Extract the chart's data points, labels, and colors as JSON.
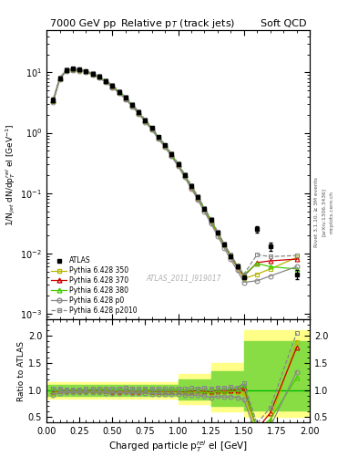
{
  "title_left": "7000 GeV pp",
  "title_right": "Soft QCD",
  "main_title": "Relative p$_{T}$ (track jets)",
  "xlabel": "Charged particle p$_{T}^{rel}$ el [GeV]",
  "ylabel_main": "1/N$_{jet}$ dN/dp$_{T}^{rel}$ el [GeV$^{-1}$]",
  "ylabel_ratio": "Ratio to ATLAS",
  "watermark": "ATLAS_2011_I919017",
  "rivet_text": "Rivet 3.1.10, ≥ 3M events",
  "arxiv_text": "[arXiv:1306.3436]",
  "mcplots_text": "mcplots.cern.ch",
  "atlas_x": [
    0.05,
    0.1,
    0.15,
    0.2,
    0.25,
    0.3,
    0.35,
    0.4,
    0.45,
    0.5,
    0.55,
    0.6,
    0.65,
    0.7,
    0.75,
    0.8,
    0.85,
    0.9,
    0.95,
    1.0,
    1.05,
    1.1,
    1.15,
    1.2,
    1.25,
    1.3,
    1.35,
    1.4,
    1.45,
    1.5,
    1.6,
    1.7,
    1.9
  ],
  "atlas_y": [
    3.5,
    8.0,
    11.0,
    11.5,
    11.2,
    10.5,
    9.5,
    8.5,
    7.2,
    6.0,
    4.8,
    3.8,
    2.9,
    2.2,
    1.6,
    1.2,
    0.85,
    0.62,
    0.44,
    0.3,
    0.2,
    0.13,
    0.085,
    0.055,
    0.036,
    0.022,
    0.014,
    0.009,
    0.006,
    0.004,
    0.025,
    0.013,
    0.0045
  ],
  "atlas_yerr": [
    0.3,
    0.4,
    0.5,
    0.5,
    0.5,
    0.4,
    0.4,
    0.35,
    0.3,
    0.25,
    0.2,
    0.16,
    0.12,
    0.09,
    0.07,
    0.05,
    0.035,
    0.025,
    0.018,
    0.012,
    0.008,
    0.005,
    0.003,
    0.002,
    0.0015,
    0.001,
    0.0006,
    0.0004,
    0.0003,
    0.0002,
    0.003,
    0.002,
    0.0008
  ],
  "py350_x": [
    0.05,
    0.1,
    0.15,
    0.2,
    0.25,
    0.3,
    0.35,
    0.4,
    0.45,
    0.5,
    0.55,
    0.6,
    0.65,
    0.7,
    0.75,
    0.8,
    0.85,
    0.9,
    0.95,
    1.0,
    1.05,
    1.1,
    1.15,
    1.2,
    1.25,
    1.3,
    1.35,
    1.4,
    1.45,
    1.5,
    1.6,
    1.7,
    1.9
  ],
  "py350_y": [
    3.3,
    7.8,
    10.8,
    11.3,
    11.0,
    10.3,
    9.3,
    8.3,
    7.0,
    5.8,
    4.6,
    3.7,
    2.8,
    2.1,
    1.55,
    1.15,
    0.82,
    0.6,
    0.42,
    0.29,
    0.19,
    0.125,
    0.082,
    0.053,
    0.034,
    0.021,
    0.0135,
    0.0088,
    0.0058,
    0.0038,
    0.0045,
    0.0055,
    0.0085
  ],
  "py370_x": [
    0.05,
    0.1,
    0.15,
    0.2,
    0.25,
    0.3,
    0.35,
    0.4,
    0.45,
    0.5,
    0.55,
    0.6,
    0.65,
    0.7,
    0.75,
    0.8,
    0.85,
    0.9,
    0.95,
    1.0,
    1.05,
    1.1,
    1.15,
    1.2,
    1.25,
    1.3,
    1.35,
    1.4,
    1.45,
    1.5,
    1.6,
    1.7,
    1.9
  ],
  "py370_y": [
    3.4,
    7.9,
    10.9,
    11.4,
    11.1,
    10.4,
    9.4,
    8.4,
    7.1,
    5.9,
    4.7,
    3.75,
    2.85,
    2.15,
    1.58,
    1.18,
    0.83,
    0.61,
    0.43,
    0.295,
    0.195,
    0.128,
    0.084,
    0.054,
    0.035,
    0.022,
    0.0138,
    0.009,
    0.006,
    0.0042,
    0.007,
    0.0075,
    0.008
  ],
  "py380_x": [
    0.05,
    0.1,
    0.15,
    0.2,
    0.25,
    0.3,
    0.35,
    0.4,
    0.45,
    0.5,
    0.55,
    0.6,
    0.65,
    0.7,
    0.75,
    0.8,
    0.85,
    0.9,
    0.95,
    1.0,
    1.05,
    1.1,
    1.15,
    1.2,
    1.25,
    1.3,
    1.35,
    1.4,
    1.45,
    1.5,
    1.6,
    1.7,
    1.9
  ],
  "py380_y": [
    3.45,
    7.95,
    10.95,
    11.45,
    11.15,
    10.45,
    9.45,
    8.45,
    7.15,
    5.95,
    4.75,
    3.78,
    2.88,
    2.17,
    1.59,
    1.19,
    0.84,
    0.615,
    0.435,
    0.298,
    0.197,
    0.13,
    0.085,
    0.055,
    0.0355,
    0.0222,
    0.014,
    0.0092,
    0.0062,
    0.0044,
    0.0068,
    0.006,
    0.0055
  ],
  "pyp0_x": [
    0.05,
    0.1,
    0.15,
    0.2,
    0.25,
    0.3,
    0.35,
    0.4,
    0.45,
    0.5,
    0.55,
    0.6,
    0.65,
    0.7,
    0.75,
    0.8,
    0.85,
    0.9,
    0.95,
    1.0,
    1.05,
    1.1,
    1.15,
    1.2,
    1.25,
    1.3,
    1.35,
    1.4,
    1.45,
    1.5,
    1.6,
    1.7,
    1.9
  ],
  "pyp0_y": [
    3.2,
    7.6,
    10.5,
    11.0,
    10.7,
    10.1,
    9.1,
    8.15,
    6.85,
    5.7,
    4.55,
    3.62,
    2.74,
    2.07,
    1.51,
    1.12,
    0.79,
    0.575,
    0.405,
    0.277,
    0.182,
    0.118,
    0.077,
    0.049,
    0.031,
    0.0195,
    0.0122,
    0.0079,
    0.0052,
    0.0033,
    0.0035,
    0.0042,
    0.006
  ],
  "pyp2010_x": [
    0.05,
    0.1,
    0.15,
    0.2,
    0.25,
    0.3,
    0.35,
    0.4,
    0.45,
    0.5,
    0.55,
    0.6,
    0.65,
    0.7,
    0.75,
    0.8,
    0.85,
    0.9,
    0.95,
    1.0,
    1.05,
    1.1,
    1.15,
    1.2,
    1.25,
    1.3,
    1.35,
    1.4,
    1.45,
    1.5,
    1.6,
    1.7,
    1.9
  ],
  "pyp2010_y": [
    3.6,
    8.2,
    11.2,
    11.7,
    11.4,
    10.7,
    9.7,
    8.7,
    7.4,
    6.2,
    4.95,
    3.95,
    3.0,
    2.25,
    1.65,
    1.23,
    0.87,
    0.635,
    0.45,
    0.31,
    0.205,
    0.135,
    0.088,
    0.057,
    0.037,
    0.023,
    0.0145,
    0.0095,
    0.0063,
    0.0045,
    0.0095,
    0.0088,
    0.0092
  ],
  "color_350": "#b8b800",
  "color_370": "#cc0000",
  "color_380": "#44cc00",
  "color_p0": "#888888",
  "color_p2010": "#888888",
  "color_atlas": "#000000",
  "band_yellow_x": [
    0.0,
    0.5,
    1.0,
    1.25,
    1.5,
    2.0
  ],
  "band_yellow_lo": [
    0.85,
    0.85,
    0.75,
    0.6,
    0.5,
    0.5
  ],
  "band_yellow_hi": [
    1.15,
    1.15,
    1.3,
    1.5,
    2.1,
    2.1
  ],
  "band_green_lo": [
    0.9,
    0.9,
    0.82,
    0.7,
    0.62,
    0.62
  ],
  "band_green_hi": [
    1.1,
    1.1,
    1.2,
    1.35,
    1.9,
    1.9
  ],
  "xlim": [
    0.0,
    2.0
  ],
  "ylim_main": [
    0.0008,
    50.0
  ],
  "ylim_ratio": [
    0.4,
    2.3
  ]
}
